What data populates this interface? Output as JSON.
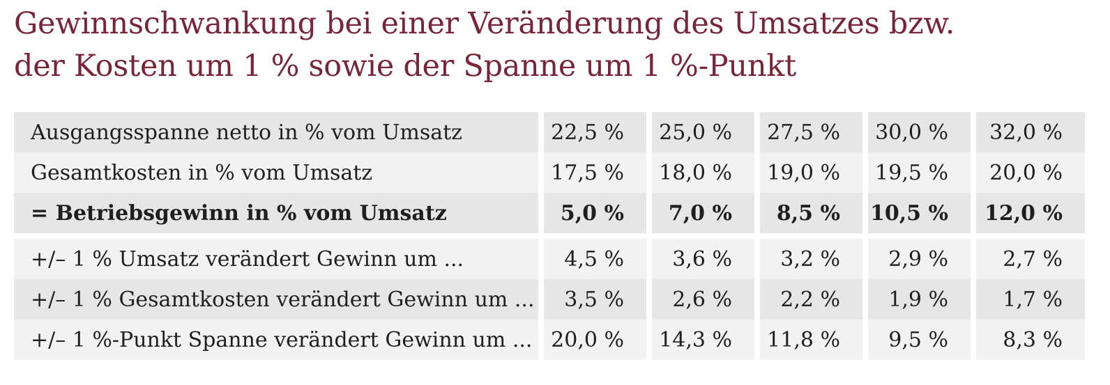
{
  "title": {
    "line1": "Gewinnschwankung bei einer Veränderung des Umsatzes bzw.",
    "line2": "der Kosten um 1 % sowie der Spanne um 1 %-Punkt"
  },
  "table": {
    "rows": [
      {
        "label": "Ausgangsspanne netto in % vom Umsatz",
        "values": [
          "22,5 %",
          "25,0 %",
          "27,5 %",
          "30,0 %",
          "32,0 %"
        ]
      },
      {
        "label": "Gesamtkosten in % vom Umsatz",
        "values": [
          "17,5 %",
          "18,0 %",
          "19,0 %",
          "19,5 %",
          "20,0 %"
        ]
      },
      {
        "label": "= Betriebsgewinn in % vom Umsatz",
        "values": [
          "5,0 %",
          "7,0 %",
          "8,5 %",
          "10,5 %",
          "12,0 %"
        ]
      },
      {
        "label": "+/– 1 % Umsatz verändert Gewinn um ...",
        "values": [
          "4,5 %",
          "3,6 %",
          "3,2 %",
          "2,9 %",
          "2,7 %"
        ]
      },
      {
        "label": "+/– 1 % Gesamtkosten verändert Gewinn um ...",
        "values": [
          "3,5 %",
          "2,6 %",
          "2,2 %",
          "1,9 %",
          "1,7 %"
        ]
      },
      {
        "label": "+/– 1 %-Punkt Spanne verändert Gewinn um ...",
        "values": [
          "20,0 %",
          "14,3 %",
          "11,8 %",
          "9,5 %",
          "8,3 %"
        ]
      }
    ]
  }
}
